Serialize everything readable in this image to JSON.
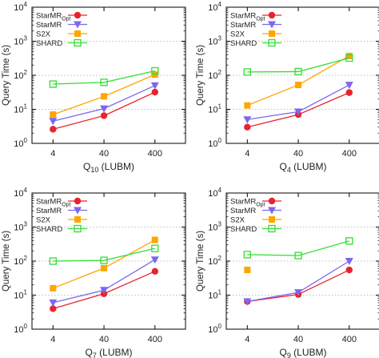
{
  "chart_data": [
    {
      "type": "line",
      "scale": "log",
      "ylabel": "Query Time (s)",
      "xlabel": {
        "main": "Q",
        "sub": "10",
        "rest": " (LUBM)"
      },
      "categories": [
        "4",
        "40",
        "400"
      ],
      "yticks": [
        {
          "base": "10",
          "exp": "0",
          "value": 1
        },
        {
          "base": "10",
          "exp": "1",
          "value": 10
        },
        {
          "base": "10",
          "exp": "2",
          "value": 100
        },
        {
          "base": "10",
          "exp": "3",
          "value": 1000
        },
        {
          "base": "10",
          "exp": "4",
          "value": 10000
        }
      ],
      "ylim": [
        1,
        10000
      ],
      "grid": "horizontal dotted",
      "legend_position": "top-left",
      "series": [
        {
          "name": "StarMR",
          "name_sub": "Opt",
          "color": "#e8232e",
          "marker": "circle",
          "values": [
            2.6,
            6.5,
            32
          ]
        },
        {
          "name": "StarMR",
          "name_sub": "",
          "color": "#7b68ee",
          "marker": "triangle-down",
          "values": [
            4.5,
            10.5,
            50
          ]
        },
        {
          "name": "S2X",
          "name_sub": "",
          "color": "#ffa500",
          "marker": "square",
          "values": [
            7,
            24,
            105
          ]
        },
        {
          "name": "SHARD",
          "name_sub": "",
          "color": "#33dd33",
          "marker": "square-open",
          "values": [
            55,
            62,
            135
          ]
        }
      ]
    },
    {
      "type": "line",
      "scale": "log",
      "ylabel": "Query Time (s)",
      "xlabel": {
        "main": "Q",
        "sub": "4",
        "rest": " (LUBM)"
      },
      "categories": [
        "4",
        "40",
        "400"
      ],
      "yticks": [
        {
          "base": "10",
          "exp": "0",
          "value": 1
        },
        {
          "base": "10",
          "exp": "1",
          "value": 10
        },
        {
          "base": "10",
          "exp": "2",
          "value": 100
        },
        {
          "base": "10",
          "exp": "3",
          "value": 1000
        },
        {
          "base": "10",
          "exp": "4",
          "value": 10000
        }
      ],
      "ylim": [
        1,
        10000
      ],
      "grid": "horizontal dotted",
      "legend_position": "top-left",
      "series": [
        {
          "name": "StarMR",
          "name_sub": "Opt",
          "color": "#e8232e",
          "marker": "circle",
          "values": [
            3,
            7,
            31
          ]
        },
        {
          "name": "StarMR",
          "name_sub": "",
          "color": "#7b68ee",
          "marker": "triangle-down",
          "values": [
            5,
            8.5,
            52
          ]
        },
        {
          "name": "S2X",
          "name_sub": "",
          "color": "#ffa500",
          "marker": "square",
          "values": [
            13,
            52,
            370
          ]
        },
        {
          "name": "SHARD",
          "name_sub": "",
          "color": "#33dd33",
          "marker": "square-open",
          "values": [
            125,
            128,
            320
          ]
        }
      ]
    },
    {
      "type": "line",
      "scale": "log",
      "ylabel": "Query Time (s)",
      "xlabel": {
        "main": "Q",
        "sub": "7",
        "rest": " (LUBM)"
      },
      "categories": [
        "4",
        "40",
        "400"
      ],
      "yticks": [
        {
          "base": "10",
          "exp": "0",
          "value": 1
        },
        {
          "base": "10",
          "exp": "1",
          "value": 10
        },
        {
          "base": "10",
          "exp": "2",
          "value": 100
        },
        {
          "base": "10",
          "exp": "3",
          "value": 1000
        },
        {
          "base": "10",
          "exp": "4",
          "value": 10000
        }
      ],
      "ylim": [
        1,
        10000
      ],
      "grid": "horizontal dotted",
      "legend_position": "top-left",
      "series": [
        {
          "name": "StarMR",
          "name_sub": "Opt",
          "color": "#e8232e",
          "marker": "circle",
          "values": [
            4,
            11,
            50
          ]
        },
        {
          "name": "StarMR",
          "name_sub": "",
          "color": "#7b68ee",
          "marker": "triangle-down",
          "values": [
            6,
            14,
            110
          ]
        },
        {
          "name": "S2X",
          "name_sub": "",
          "color": "#ffa500",
          "marker": "square",
          "values": [
            16,
            62,
            420
          ]
        },
        {
          "name": "SHARD",
          "name_sub": "",
          "color": "#33dd33",
          "marker": "square-open",
          "values": [
            100,
            105,
            235
          ]
        }
      ]
    },
    {
      "type": "line",
      "scale": "log",
      "ylabel": "Query Time (s)",
      "xlabel": {
        "main": "Q",
        "sub": "9",
        "rest": " (LUBM)"
      },
      "categories": [
        "4",
        "40",
        "400"
      ],
      "yticks": [
        {
          "base": "10",
          "exp": "0",
          "value": 1
        },
        {
          "base": "10",
          "exp": "1",
          "value": 10
        },
        {
          "base": "10",
          "exp": "2",
          "value": 100
        },
        {
          "base": "10",
          "exp": "3",
          "value": 1000
        },
        {
          "base": "10",
          "exp": "4",
          "value": 10000
        }
      ],
      "ylim": [
        1,
        10000
      ],
      "grid": "horizontal dotted",
      "legend_position": "top-left",
      "series": [
        {
          "name": "StarMR",
          "name_sub": "Opt",
          "color": "#e8232e",
          "marker": "circle",
          "values": [
            6.5,
            10.5,
            55
          ]
        },
        {
          "name": "StarMR",
          "name_sub": "",
          "color": "#7b68ee",
          "marker": "triangle-down",
          "values": [
            6.5,
            12,
            100
          ]
        },
        {
          "name": "S2X",
          "name_sub": "",
          "color": "#ffa500",
          "marker": "square",
          "values": [
            55,
            null,
            null
          ]
        },
        {
          "name": "SHARD",
          "name_sub": "",
          "color": "#33dd33",
          "marker": "square-open",
          "values": [
            155,
            145,
            390
          ]
        }
      ]
    }
  ]
}
